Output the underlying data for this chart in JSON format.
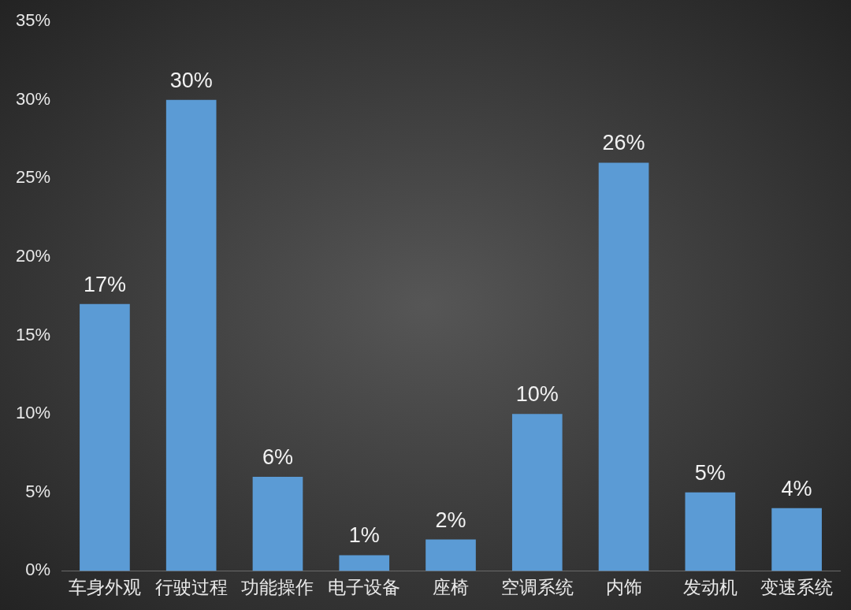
{
  "chart_data": {
    "type": "bar",
    "categories": [
      "车身外观",
      "行驶过程",
      "功能操作",
      "电子设备",
      "座椅",
      "空调系统",
      "内饰",
      "发动机",
      "变速系统"
    ],
    "values": [
      17,
      30,
      6,
      1,
      2,
      10,
      26,
      5,
      4
    ],
    "value_labels": [
      "17%",
      "30%",
      "6%",
      "1%",
      "2%",
      "10%",
      "26%",
      "5%",
      "4%"
    ],
    "color": "#5b9bd5",
    "ylim": [
      0,
      35
    ],
    "yticks": [
      {
        "value": 0,
        "label": "0%"
      },
      {
        "value": 5,
        "label": "5%"
      },
      {
        "value": 10,
        "label": "10%"
      },
      {
        "value": 15,
        "label": "15%"
      },
      {
        "value": 20,
        "label": "20%"
      },
      {
        "value": 25,
        "label": "25%"
      },
      {
        "value": 30,
        "label": "30%"
      },
      {
        "value": 35,
        "label": "35%"
      }
    ],
    "grid": false
  }
}
